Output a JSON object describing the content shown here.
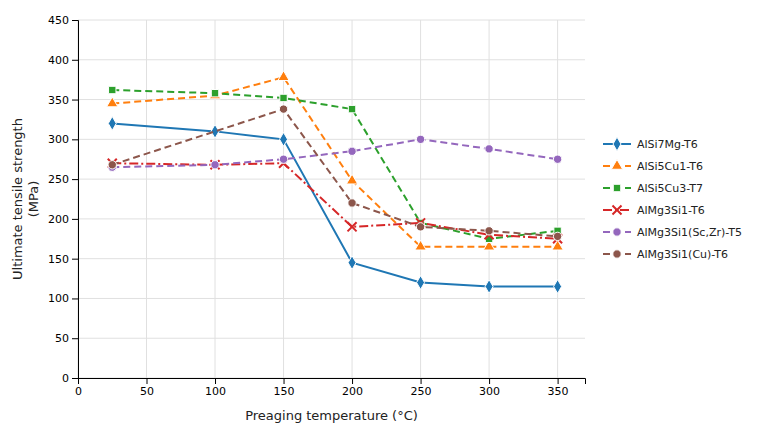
{
  "chart_data": {
    "type": "line",
    "xlabel": "Preaging temperature (°C)",
    "ylabel": "Ultimate tensile strength\n(MPa)",
    "xlim": [
      0,
      370
    ],
    "ylim": [
      0,
      450
    ],
    "xticks": [
      0,
      50,
      100,
      150,
      200,
      250,
      300,
      350
    ],
    "yticks": [
      0,
      50,
      100,
      150,
      200,
      250,
      300,
      350,
      400,
      450
    ],
    "grid": true,
    "legend": "right",
    "series": [
      {
        "name": "AlSi7Mg-T6",
        "marker": "diamond",
        "line_style": "solid",
        "x": [
          25,
          100,
          150,
          200,
          250,
          300,
          350
        ],
        "values": [
          320,
          310,
          300,
          145,
          120,
          115,
          115
        ]
      },
      {
        "name": "AlSi5Cu1-T6",
        "marker": "triangle",
        "line_style": "dashed",
        "x": [
          25,
          100,
          150,
          200,
          250,
          300,
          350
        ],
        "values": [
          345,
          355,
          378,
          248,
          165,
          165,
          165
        ]
      },
      {
        "name": "AlSi5Cu3-T7",
        "marker": "square",
        "line_style": "dashed",
        "x": [
          25,
          100,
          150,
          200,
          250,
          300,
          350
        ],
        "values": [
          362,
          358,
          352,
          338,
          195,
          175,
          185
        ]
      },
      {
        "name": "AlMg3Si1-T6",
        "marker": "x",
        "line_style": "dashdot",
        "x": [
          25,
          100,
          150,
          200,
          250,
          300,
          350
        ],
        "values": [
          270,
          268,
          270,
          190,
          195,
          180,
          175
        ]
      },
      {
        "name": "AlMg3Si1(Sc,Zr)-T5",
        "marker": "circle",
        "line_style": "dashed",
        "x": [
          25,
          100,
          150,
          200,
          250,
          300,
          350
        ],
        "values": [
          265,
          268,
          275,
          285,
          300,
          288,
          275
        ]
      },
      {
        "name": "AlMg3Si1(Cu)-T6",
        "marker": "circle",
        "line_style": "dashed",
        "x": [
          25,
          150,
          200,
          250,
          300,
          350
        ],
        "values": [
          268,
          338,
          220,
          190,
          185,
          178
        ]
      }
    ]
  }
}
